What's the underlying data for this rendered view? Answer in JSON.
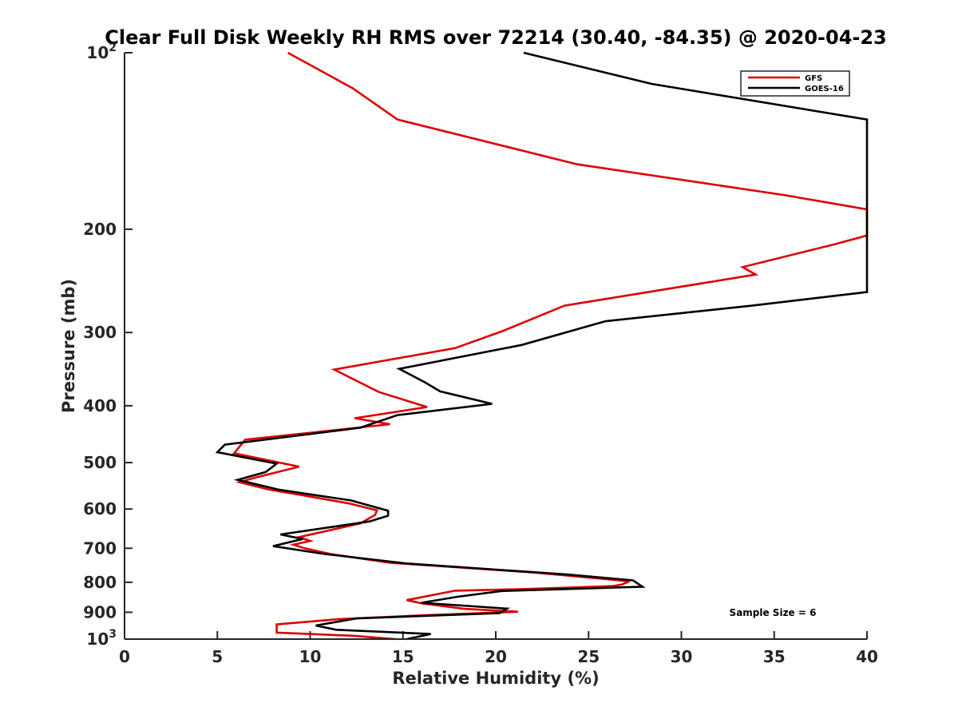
{
  "chart_data": {
    "type": "line",
    "title": "Clear Full Disk Weekly RH RMS over 72214 (30.40, -84.35) @ 2020-04-23",
    "xlabel": "Relative Humidity (%)",
    "ylabel": "Pressure (mb)",
    "xlim": [
      0,
      40
    ],
    "ylim": [
      100,
      1000
    ],
    "yscale": "log",
    "y_reversed": true,
    "grid": false,
    "legend_position": "top-right",
    "x_ticks": [
      {
        "value": 0,
        "label": "0"
      },
      {
        "value": 5,
        "label": "5"
      },
      {
        "value": 10,
        "label": "10"
      },
      {
        "value": 15,
        "label": "15"
      },
      {
        "value": 20,
        "label": "20"
      },
      {
        "value": 25,
        "label": "25"
      },
      {
        "value": 30,
        "label": "30"
      },
      {
        "value": 35,
        "label": "35"
      },
      {
        "value": 40,
        "label": "40"
      }
    ],
    "y_ticks": [
      {
        "value": 100,
        "base": "10",
        "exp": "2"
      },
      {
        "value": 200,
        "label": "200"
      },
      {
        "value": 300,
        "label": "300"
      },
      {
        "value": 400,
        "label": "400"
      },
      {
        "value": 500,
        "label": "500"
      },
      {
        "value": 600,
        "label": "600"
      },
      {
        "value": 700,
        "label": "700"
      },
      {
        "value": 800,
        "label": "800"
      },
      {
        "value": 900,
        "label": "900"
      },
      {
        "value": 1000,
        "base": "10",
        "exp": "3"
      }
    ],
    "series": [
      {
        "name": "GFS",
        "color": "#dd0000",
        "points": [
          [
            8.8,
            100
          ],
          [
            12.3,
            115
          ],
          [
            14.7,
            130
          ],
          [
            24.4,
            155
          ],
          [
            35.6,
            175
          ],
          [
            40,
            185
          ],
          [
            40,
            205
          ],
          [
            38.3,
            212
          ],
          [
            33.3,
            232
          ],
          [
            34,
            239
          ],
          [
            23.7,
            270
          ],
          [
            20.4,
            298
          ],
          [
            17.8,
            319
          ],
          [
            11.3,
            347
          ],
          [
            13.7,
            379
          ],
          [
            16.3,
            402
          ],
          [
            12.4,
            420
          ],
          [
            14.3,
            430
          ],
          [
            6.5,
            457
          ],
          [
            5.9,
            482
          ],
          [
            9.4,
            508
          ],
          [
            6.9,
            532
          ],
          [
            6.2,
            540
          ],
          [
            7.8,
            556
          ],
          [
            9.7,
            569
          ],
          [
            12.1,
            587
          ],
          [
            13.6,
            603
          ],
          [
            13.5,
            614
          ],
          [
            12.7,
            635
          ],
          [
            9.4,
            670
          ],
          [
            10.0,
            680
          ],
          [
            9.1,
            690
          ],
          [
            9.7,
            700
          ],
          [
            11.1,
            716
          ],
          [
            14.3,
            741
          ],
          [
            22.1,
            770
          ],
          [
            27.2,
            797
          ],
          [
            26.8,
            807
          ],
          [
            26.3,
            812
          ],
          [
            21.3,
            822
          ],
          [
            17.8,
            827
          ],
          [
            15.2,
            858
          ],
          [
            16.0,
            869
          ],
          [
            18.3,
            888
          ],
          [
            21.2,
            898
          ],
          [
            16.0,
            911
          ],
          [
            11.5,
            925
          ],
          [
            8.2,
            944
          ],
          [
            8.2,
            975
          ],
          [
            12.3,
            987
          ],
          [
            14.6,
            1000
          ]
        ]
      },
      {
        "name": "GOES-16",
        "color": "#000000",
        "points": [
          [
            21.5,
            100
          ],
          [
            28.4,
            113
          ],
          [
            40,
            130
          ],
          [
            40,
            256
          ],
          [
            33.8,
            270
          ],
          [
            25.9,
            287
          ],
          [
            21.4,
            315
          ],
          [
            14.8,
            346
          ],
          [
            16.2,
            365
          ],
          [
            17.0,
            378
          ],
          [
            19.8,
            397
          ],
          [
            14.7,
            415
          ],
          [
            12.7,
            436
          ],
          [
            5.4,
            466
          ],
          [
            5.0,
            480
          ],
          [
            8.2,
            502
          ],
          [
            7.6,
            519
          ],
          [
            6.1,
            535
          ],
          [
            8.3,
            556
          ],
          [
            12.2,
            580
          ],
          [
            14.2,
            604
          ],
          [
            14.2,
            616
          ],
          [
            13.2,
            630
          ],
          [
            8.4,
            663
          ],
          [
            9.6,
            675
          ],
          [
            8.0,
            694
          ],
          [
            10.8,
            716
          ],
          [
            15.2,
            743
          ],
          [
            23.9,
            776
          ],
          [
            27.4,
            794
          ],
          [
            27.9,
            814
          ],
          [
            20.3,
            828
          ],
          [
            17.9,
            847
          ],
          [
            16.0,
            867
          ],
          [
            20.6,
            887
          ],
          [
            20.2,
            903
          ],
          [
            12.5,
            922
          ],
          [
            10.3,
            948
          ],
          [
            11.4,
            964
          ],
          [
            16.5,
            980
          ],
          [
            15.2,
            1000
          ]
        ]
      }
    ],
    "legend": [
      {
        "label": "GFS",
        "color": "#dd0000"
      },
      {
        "label": "GOES-16",
        "color": "#000000"
      }
    ],
    "annotations": [
      {
        "text": "Sample Size = 6",
        "position": "bottom-right"
      }
    ]
  }
}
